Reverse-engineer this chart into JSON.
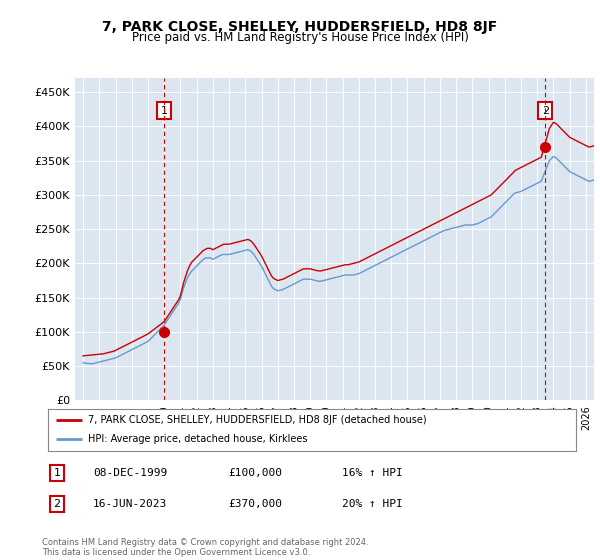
{
  "title": "7, PARK CLOSE, SHELLEY, HUDDERSFIELD, HD8 8JF",
  "subtitle": "Price paid vs. HM Land Registry's House Price Index (HPI)",
  "ylim": [
    0,
    470000
  ],
  "yticks": [
    0,
    50000,
    100000,
    150000,
    200000,
    250000,
    300000,
    350000,
    400000,
    450000
  ],
  "ytick_labels": [
    "£0",
    "£50K",
    "£100K",
    "£150K",
    "£200K",
    "£250K",
    "£300K",
    "£350K",
    "£400K",
    "£450K"
  ],
  "bg_color": "#dce6f1",
  "hpi_color": "#6699cc",
  "sale_color": "#cc0000",
  "marker1_year": 2000.0,
  "marker1_price": 100000,
  "marker2_year": 2023.5,
  "marker2_price": 370000,
  "legend_sale_label": "7, PARK CLOSE, SHELLEY, HUDDERSFIELD, HD8 8JF (detached house)",
  "legend_hpi_label": "HPI: Average price, detached house, Kirklees",
  "sale1_date": "08-DEC-1999",
  "sale1_price": "£100,000",
  "sale1_hpi": "16% ↑ HPI",
  "sale2_date": "16-JUN-2023",
  "sale2_price": "£370,000",
  "sale2_hpi": "20% ↑ HPI",
  "footer": "Contains HM Land Registry data © Crown copyright and database right 2024.\nThis data is licensed under the Open Government Licence v3.0.",
  "hpi_monthly": [
    55000,
    54500,
    54200,
    54000,
    53800,
    53600,
    53500,
    53700,
    54000,
    54500,
    55000,
    55500,
    56000,
    56500,
    57000,
    57500,
    58000,
    58500,
    59000,
    59500,
    60000,
    60500,
    61000,
    61500,
    62000,
    63000,
    64000,
    65000,
    66000,
    67000,
    68000,
    69000,
    70000,
    71000,
    72000,
    73000,
    74000,
    75000,
    76000,
    77000,
    78000,
    79000,
    80000,
    81000,
    82000,
    83000,
    84000,
    85000,
    86000,
    88000,
    90000,
    92000,
    94000,
    96000,
    98000,
    100000,
    102000,
    104000,
    106000,
    108000,
    110000,
    113000,
    116000,
    119000,
    122000,
    125000,
    128000,
    131000,
    134000,
    137000,
    140000,
    143000,
    148000,
    155000,
    162000,
    168000,
    173000,
    178000,
    182000,
    185000,
    188000,
    190000,
    192000,
    194000,
    196000,
    198000,
    200000,
    202000,
    204000,
    206000,
    207000,
    208000,
    208000,
    208000,
    208000,
    207000,
    206000,
    207000,
    208000,
    209000,
    210000,
    211000,
    212000,
    213000,
    213000,
    213000,
    213000,
    213000,
    213000,
    213500,
    214000,
    214500,
    215000,
    215500,
    216000,
    216500,
    217000,
    217500,
    218000,
    218500,
    219000,
    219500,
    220000,
    219000,
    218000,
    216000,
    214000,
    211000,
    208000,
    205000,
    202000,
    199000,
    196000,
    192000,
    188000,
    184000,
    180000,
    176000,
    172000,
    168000,
    165000,
    163000,
    162000,
    161000,
    160000,
    160500,
    161000,
    161500,
    162000,
    163000,
    164000,
    165000,
    166000,
    167000,
    168000,
    169000,
    170000,
    171000,
    172000,
    173000,
    174000,
    175000,
    176000,
    177000,
    177000,
    177000,
    177000,
    177000,
    177000,
    176500,
    176000,
    175500,
    175000,
    174500,
    174000,
    174000,
    174000,
    174500,
    175000,
    175500,
    176000,
    176500,
    177000,
    177500,
    178000,
    178500,
    179000,
    179500,
    180000,
    180500,
    181000,
    181500,
    182000,
    182500,
    183000,
    183000,
    183000,
    183000,
    183000,
    183000,
    183000,
    183500,
    184000,
    184500,
    185000,
    186000,
    187000,
    188000,
    189000,
    190000,
    191000,
    192000,
    193000,
    194000,
    195000,
    196000,
    197000,
    198000,
    199000,
    200000,
    201000,
    202000,
    203000,
    204000,
    205000,
    206000,
    207000,
    208000,
    209000,
    210000,
    211000,
    212000,
    213000,
    214000,
    215000,
    216000,
    217000,
    218000,
    219000,
    220000,
    221000,
    222000,
    223000,
    224000,
    225000,
    226000,
    227000,
    228000,
    229000,
    230000,
    231000,
    232000,
    233000,
    234000,
    235000,
    236000,
    237000,
    238000,
    239000,
    240000,
    241000,
    242000,
    243000,
    244000,
    245000,
    246000,
    247000,
    248000,
    248500,
    249000,
    249500,
    250000,
    250500,
    251000,
    251500,
    252000,
    252500,
    253000,
    253500,
    254000,
    254500,
    255000,
    255500,
    256000,
    256000,
    256000,
    256000,
    256000,
    256000,
    256500,
    257000,
    257500,
    258000,
    259000,
    260000,
    261000,
    262000,
    263000,
    264000,
    265000,
    266000,
    267000,
    268000,
    270000,
    272000,
    274000,
    276000,
    278000,
    280000,
    282000,
    284000,
    286000,
    288000,
    290000,
    292000,
    294000,
    296000,
    298000,
    300000,
    302000,
    303000,
    303500,
    304000,
    304500,
    305000,
    306000,
    307000,
    308000,
    309000,
    310000,
    311000,
    312000,
    313000,
    314000,
    315000,
    316000,
    317000,
    318000,
    319000,
    320000,
    325000,
    330000,
    335000,
    340000,
    345000,
    350000,
    352000,
    354000,
    356000,
    355000,
    354000,
    352000,
    350000,
    348000,
    346000,
    344000,
    342000,
    340000,
    338000,
    336000,
    334000,
    333000,
    332000,
    331000,
    330000,
    329000,
    328000,
    327000,
    326000,
    325000,
    324000,
    323000,
    322000,
    321000,
    320000,
    320000,
    320500,
    321000,
    322000,
    323000
  ],
  "sale_monthly": [
    65000,
    65200,
    65400,
    65600,
    65800,
    66000,
    66200,
    66400,
    66600,
    66800,
    67000,
    67200,
    67400,
    67600,
    67800,
    68000,
    68500,
    69000,
    69500,
    70000,
    70500,
    71000,
    71500,
    72000,
    73000,
    74000,
    75000,
    76000,
    77000,
    78000,
    79000,
    80000,
    81000,
    82000,
    83000,
    84000,
    85000,
    86000,
    87000,
    88000,
    89000,
    90000,
    91000,
    92000,
    93000,
    94000,
    95000,
    96000,
    97000,
    98500,
    100000,
    101500,
    103000,
    104500,
    106000,
    107500,
    109000,
    110500,
    112000,
    113500,
    115000,
    118000,
    121000,
    124000,
    127000,
    130000,
    133000,
    136000,
    139000,
    142000,
    145000,
    148000,
    153000,
    161000,
    169000,
    176000,
    182000,
    188000,
    193000,
    197000,
    201000,
    203000,
    205000,
    207000,
    209000,
    211000,
    213000,
    215000,
    217000,
    219000,
    220000,
    221000,
    222000,
    222000,
    222000,
    221000,
    220000,
    221000,
    222000,
    223000,
    224000,
    225000,
    226000,
    227000,
    228000,
    228000,
    228000,
    228000,
    228000,
    228500,
    229000,
    229500,
    230000,
    230500,
    231000,
    231500,
    232000,
    232500,
    233000,
    233500,
    234000,
    234500,
    235000,
    234000,
    233000,
    231000,
    229000,
    226000,
    223000,
    220000,
    217000,
    214000,
    211000,
    207000,
    203000,
    199000,
    195000,
    191000,
    187000,
    183000,
    180000,
    178000,
    177000,
    176000,
    175000,
    175500,
    176000,
    176500,
    177000,
    178000,
    179000,
    180000,
    181000,
    182000,
    183000,
    184000,
    185000,
    186000,
    187000,
    188000,
    189000,
    190000,
    191000,
    192000,
    192000,
    192000,
    192000,
    192000,
    192000,
    191500,
    191000,
    190500,
    190000,
    189500,
    189000,
    189000,
    189000,
    189500,
    190000,
    190500,
    191000,
    191500,
    192000,
    192500,
    193000,
    193500,
    194000,
    194500,
    195000,
    195500,
    196000,
    196500,
    197000,
    197500,
    198000,
    198000,
    198000,
    198500,
    199000,
    199500,
    200000,
    200500,
    201000,
    201500,
    202000,
    203000,
    204000,
    205000,
    206000,
    207000,
    208000,
    209000,
    210000,
    211000,
    212000,
    213000,
    214000,
    215000,
    216000,
    217000,
    218000,
    219000,
    220000,
    221000,
    222000,
    223000,
    224000,
    225000,
    226000,
    227000,
    228000,
    229000,
    230000,
    231000,
    232000,
    233000,
    234000,
    235000,
    236000,
    237000,
    238000,
    239000,
    240000,
    241000,
    242000,
    243000,
    244000,
    245000,
    246000,
    247000,
    248000,
    249000,
    250000,
    251000,
    252000,
    253000,
    254000,
    255000,
    256000,
    257000,
    258000,
    259000,
    260000,
    261000,
    262000,
    263000,
    264000,
    265000,
    266000,
    267000,
    268000,
    269000,
    270000,
    271000,
    272000,
    273000,
    274000,
    275000,
    276000,
    277000,
    278000,
    279000,
    280000,
    281000,
    282000,
    283000,
    284000,
    285000,
    286000,
    287000,
    288000,
    289000,
    290000,
    291000,
    292000,
    293000,
    294000,
    295000,
    296000,
    297000,
    298000,
    299000,
    300000,
    302000,
    304000,
    306000,
    308000,
    310000,
    312000,
    314000,
    316000,
    318000,
    320000,
    322000,
    324000,
    326000,
    328000,
    330000,
    332000,
    334000,
    336000,
    337000,
    338000,
    339000,
    340000,
    341000,
    342000,
    343000,
    344000,
    345000,
    346000,
    347000,
    348000,
    349000,
    350000,
    351000,
    352000,
    353000,
    354000,
    355000,
    362000,
    369000,
    376000,
    383000,
    390000,
    397000,
    400000,
    403000,
    406000,
    405000,
    404000,
    402000,
    400000,
    398000,
    396000,
    394000,
    392000,
    390000,
    388000,
    386000,
    384000,
    383000,
    382000,
    381000,
    380000,
    379000,
    378000,
    377000,
    376000,
    375000,
    374000,
    373000,
    372000,
    371000,
    370000,
    370000,
    370500,
    371000,
    372000,
    373000
  ]
}
